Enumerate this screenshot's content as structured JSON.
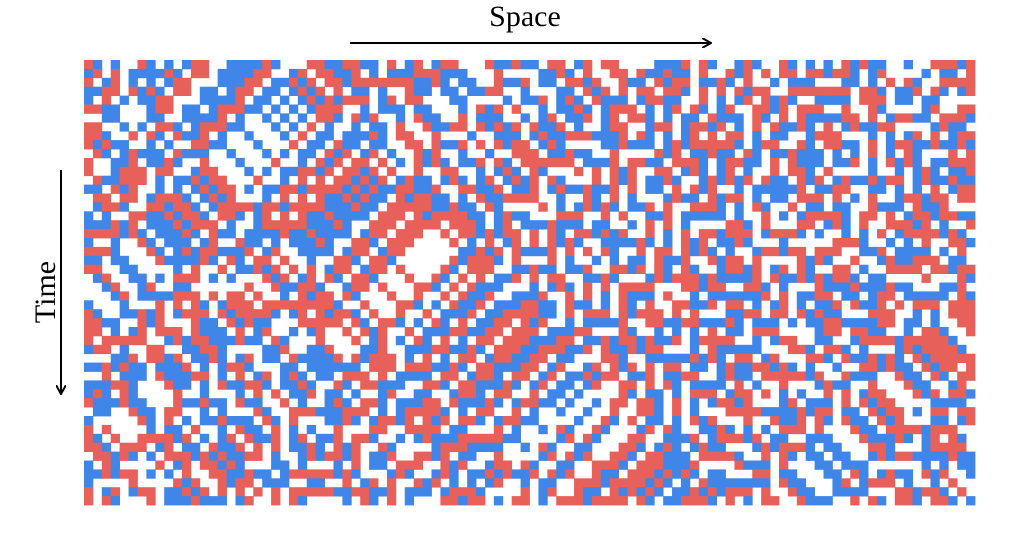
{
  "labels": {
    "space": "Space",
    "time": "Time"
  }
}
